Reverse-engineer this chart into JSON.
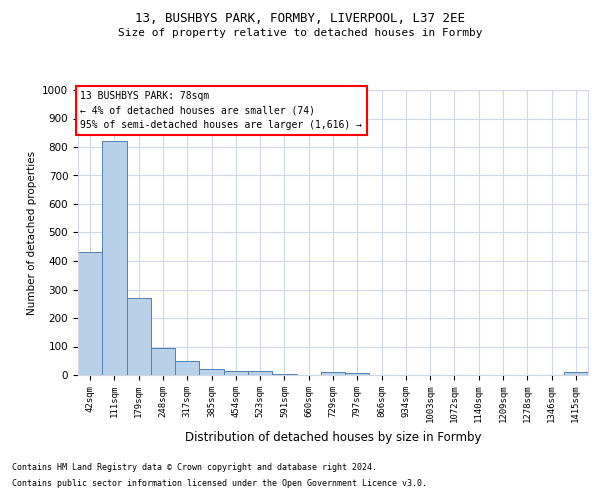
{
  "title1": "13, BUSHBYS PARK, FORMBY, LIVERPOOL, L37 2EE",
  "title2": "Size of property relative to detached houses in Formby",
  "xlabel": "Distribution of detached houses by size in Formby",
  "ylabel": "Number of detached properties",
  "categories": [
    "42sqm",
    "111sqm",
    "179sqm",
    "248sqm",
    "317sqm",
    "385sqm",
    "454sqm",
    "523sqm",
    "591sqm",
    "660sqm",
    "729sqm",
    "797sqm",
    "866sqm",
    "934sqm",
    "1003sqm",
    "1072sqm",
    "1140sqm",
    "1209sqm",
    "1278sqm",
    "1346sqm",
    "1415sqm"
  ],
  "values": [
    430,
    820,
    270,
    93,
    48,
    22,
    15,
    13,
    5,
    0,
    12,
    8,
    0,
    0,
    0,
    0,
    0,
    0,
    0,
    0,
    10
  ],
  "bar_color": "#b8d0e8",
  "bar_edge_color": "#5080b0",
  "ylim": [
    0,
    1000
  ],
  "yticks": [
    0,
    100,
    200,
    300,
    400,
    500,
    600,
    700,
    800,
    900,
    1000
  ],
  "annotation_line1": "13 BUSHBYS PARK: 78sqm",
  "annotation_line2": "← 4% of detached houses are smaller (74)",
  "annotation_line3": "95% of semi-detached houses are larger (1,616) →",
  "footer1": "Contains HM Land Registry data © Crown copyright and database right 2024.",
  "footer2": "Contains public sector information licensed under the Open Government Licence v3.0.",
  "background_color": "#ffffff",
  "grid_color": "#d0d8e8"
}
